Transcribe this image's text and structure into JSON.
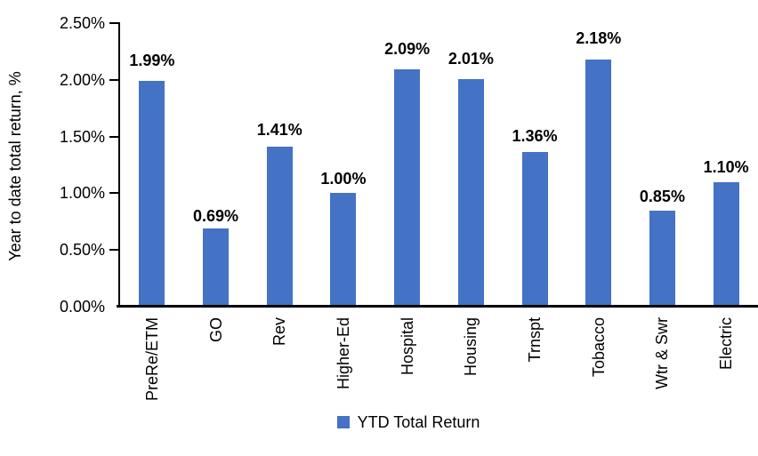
{
  "chart_data": {
    "type": "bar",
    "title": "",
    "ylabel": "Year to date total return, %",
    "xlabel": "",
    "categories": [
      "PreRe/ETM",
      "GO",
      "Rev",
      "Higher-Ed",
      "Hospital",
      "Housing",
      "Trnspt",
      "Tobacco",
      "Wtr & Swr",
      "Electric"
    ],
    "series": [
      {
        "name": "YTD Total Return",
        "values": [
          1.99,
          0.69,
          1.41,
          1.0,
          2.09,
          2.01,
          1.36,
          2.18,
          0.85,
          1.1
        ]
      }
    ],
    "data_labels": [
      "1.99%",
      "0.69%",
      "1.41%",
      "1.00%",
      "2.09%",
      "2.01%",
      "1.36%",
      "2.18%",
      "0.85%",
      "1.10%"
    ],
    "y_ticks": [
      "2.50%",
      "2.00%",
      "1.50%",
      "1.00%",
      "0.50%",
      "0.00%"
    ],
    "ylim": [
      0,
      2.5
    ],
    "grid": false,
    "legend_position": "bottom",
    "bar_color": "#4472C4",
    "axis_color": "#000000",
    "text_color": "#000000"
  }
}
